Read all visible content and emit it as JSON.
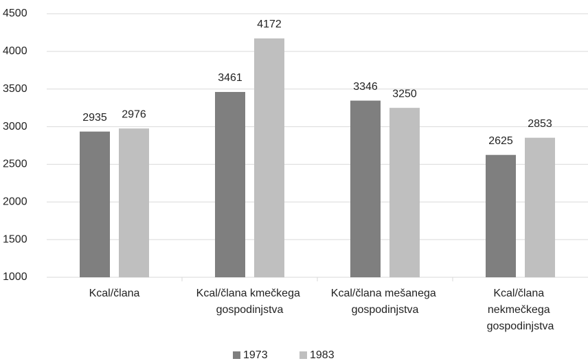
{
  "chart_data": {
    "type": "bar",
    "categories": [
      "Kcal/člana",
      "Kcal/člana kmečkega gospodinjstva",
      "Kcal/člana mešanega gospodinjstva",
      "Kcal/člana nekmečkega gospodinjstva"
    ],
    "series": [
      {
        "name": "1973",
        "color": "#7f7f7f",
        "values": [
          2935,
          3461,
          3346,
          2625
        ]
      },
      {
        "name": "1983",
        "color": "#bfbfbf",
        "values": [
          2976,
          4172,
          3250,
          2853
        ]
      }
    ],
    "ylim": [
      1000,
      4500
    ],
    "yticks": [
      1000,
      1500,
      2000,
      2500,
      3000,
      3500,
      4000,
      4500
    ],
    "grid": true,
    "legend": "bottom"
  }
}
